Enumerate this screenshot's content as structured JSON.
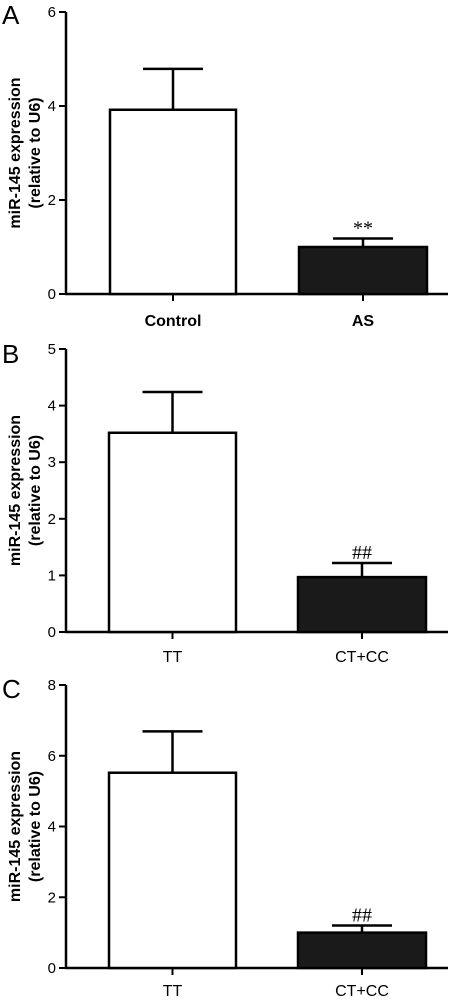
{
  "chart_data": [
    {
      "type": "bar",
      "panel": "A",
      "categories": [
        "Control",
        "AS"
      ],
      "values": [
        3.92,
        1.0
      ],
      "errors": [
        0.87,
        0.18
      ],
      "bar_colors": [
        "#ffffff",
        "#1a1a1a"
      ],
      "annotations": [
        "",
        "**"
      ],
      "ylabel_lines": [
        "miR-145 expression",
        "(relative to U6)"
      ],
      "ylim": [
        0,
        6
      ],
      "yticks": [
        0,
        2,
        4,
        6
      ],
      "bold_categories": true,
      "grid": false
    },
    {
      "type": "bar",
      "panel": "B",
      "categories": [
        "TT",
        "CT+CC"
      ],
      "values": [
        3.52,
        0.97
      ],
      "errors": [
        0.72,
        0.25
      ],
      "bar_colors": [
        "#ffffff",
        "#1a1a1a"
      ],
      "annotations": [
        "",
        "##"
      ],
      "ylabel_lines": [
        "miR-145  expression",
        "(relative to U6)"
      ],
      "ylim": [
        0,
        5
      ],
      "yticks": [
        0,
        1,
        2,
        3,
        4,
        5
      ],
      "bold_categories": false,
      "grid": false
    },
    {
      "type": "bar",
      "panel": "C",
      "categories": [
        "TT",
        "CT+CC"
      ],
      "values": [
        5.52,
        1.0
      ],
      "errors": [
        1.17,
        0.2
      ],
      "bar_colors": [
        "#ffffff",
        "#1a1a1a"
      ],
      "annotations": [
        "",
        "##"
      ],
      "ylabel_lines": [
        "miR-145  expression",
        "(relative to U6)"
      ],
      "ylim": [
        0,
        8
      ],
      "yticks": [
        0,
        2,
        4,
        6,
        8
      ],
      "bold_categories": false,
      "grid": false
    }
  ]
}
